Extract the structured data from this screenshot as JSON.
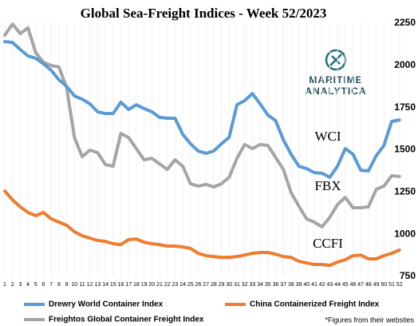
{
  "chart_data": {
    "type": "line",
    "title": "Global Sea-Freight Indices -  Week 52/2023",
    "categories": [
      "1",
      "2",
      "3",
      "4",
      "5",
      "6",
      "7",
      "8",
      "9",
      "10",
      "11",
      "12",
      "13",
      "14",
      "15",
      "16",
      "17",
      "18",
      "19",
      "20",
      "21",
      "22",
      "23",
      "24",
      "25",
      "26",
      "27",
      "28",
      "29",
      "30",
      "31",
      "32",
      "33",
      "34",
      "35",
      "36",
      "37",
      "38",
      "39",
      "40",
      "41",
      "42",
      "43",
      "44",
      "45",
      "46",
      "47",
      "48",
      "49",
      "50",
      "51",
      "52"
    ],
    "series": [
      {
        "name": "Drewry World Container Index",
        "color": "#5b9bd5",
        "values": [
          2141,
          2136,
          2094,
          2056,
          2042,
          2009,
          1971,
          1914,
          1876,
          1819,
          1800,
          1772,
          1725,
          1715,
          1715,
          1782,
          1739,
          1767,
          1744,
          1725,
          1692,
          1687,
          1687,
          1592,
          1536,
          1493,
          1479,
          1493,
          1536,
          1574,
          1767,
          1791,
          1833,
          1772,
          1706,
          1673,
          1559,
          1474,
          1403,
          1389,
          1365,
          1361,
          1337,
          1403,
          1507,
          1474,
          1379,
          1375,
          1465,
          1526,
          1668,
          1677
        ]
      },
      {
        "name": "China Containerized Freight Index",
        "color": "#ed7d31",
        "values": [
          1256,
          1204,
          1162,
          1129,
          1110,
          1129,
          1091,
          1072,
          1053,
          1015,
          991,
          977,
          963,
          958,
          944,
          939,
          968,
          972,
          953,
          944,
          939,
          930,
          930,
          925,
          916,
          887,
          873,
          868,
          863,
          863,
          868,
          877,
          887,
          892,
          892,
          882,
          868,
          863,
          840,
          830,
          821,
          821,
          816,
          835,
          849,
          873,
          877,
          854,
          854,
          873,
          887,
          906
        ]
      },
      {
        "name": "Freightos Global Container Freight Index",
        "color": "#a5a5a5",
        "values": [
          2179,
          2245,
          2188,
          2222,
          2075,
          2018,
          1999,
          1990,
          1867,
          1573,
          1460,
          1498,
          1483,
          1413,
          1403,
          1597,
          1573,
          1507,
          1441,
          1450,
          1417,
          1384,
          1441,
          1403,
          1299,
          1285,
          1295,
          1280,
          1299,
          1337,
          1450,
          1531,
          1507,
          1531,
          1526,
          1455,
          1384,
          1247,
          1167,
          1091,
          1072,
          1044,
          1100,
          1176,
          1218,
          1157,
          1157,
          1162,
          1266,
          1285,
          1346,
          1342
        ]
      }
    ],
    "ylim": [
      750,
      2250
    ],
    "yticks": [
      750,
      1000,
      1250,
      1500,
      1750,
      2000,
      2250
    ],
    "annotations": [
      "WCI",
      "FBX",
      "CCFI"
    ],
    "footnote": "*Figures from their websites"
  },
  "logo": {
    "line1": "MARITIME",
    "line2": "ANALYTICA"
  }
}
